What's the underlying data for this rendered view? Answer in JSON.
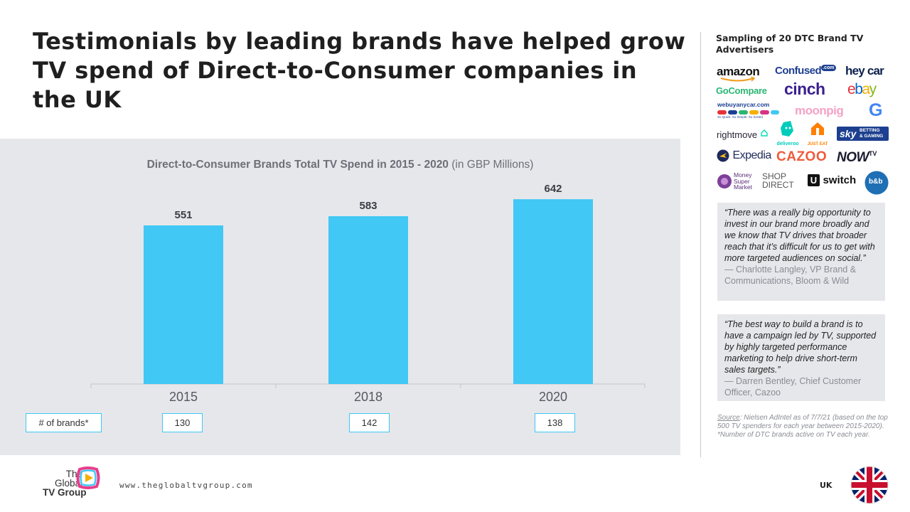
{
  "title": "Testimonials by leading brands have helped grow TV spend of Direct-to-Consumer companies in the UK",
  "chart_data": {
    "type": "bar",
    "title": "Direct-to-Consumer Brands Total TV Spend in 2015 - 2020",
    "title_unit": "(in GBP Millions)",
    "categories": [
      "2015",
      "2018",
      "2020"
    ],
    "values": [
      551,
      583,
      642
    ],
    "ylim": [
      0,
      700
    ],
    "grid": false,
    "bar_color": "#41c8f5",
    "row_label": "# of brands*",
    "brand_counts": [
      "130",
      "142",
      "138"
    ]
  },
  "sidebar": {
    "sampling_title": "Sampling of 20 DTC Brand TV Advertisers",
    "logos": {
      "amazon": "amazon",
      "confused": "Confused",
      "confused_suffix": ".com",
      "heycar": "hey car",
      "gocompare": "GoCompare",
      "cinch": "cinch",
      "ebay_e": "e",
      "ebay_b": "b",
      "ebay_a": "a",
      "ebay_y": "y",
      "webuyanycar": "webuyanycar.com",
      "webuyanycar_tagline": "So Quick. So Simple. So Sorted",
      "moonpig": "moonpig",
      "google": "G",
      "rightmove": "rightmove",
      "deliveroo": "deliveroo",
      "justeat": "JUST EAT",
      "sky": "sky",
      "sky_sub1": "BETTING",
      "sky_sub2": "& GAMING",
      "expedia": "Expedia",
      "cazoo": "CAZOO",
      "nowtv": "NOW",
      "nowtv_tv": "TV",
      "moneysupermarket1": "Money",
      "moneysupermarket2": "Super",
      "moneysupermarket3": "Market",
      "shopdirect1": "SHOP",
      "shopdirect2": "DIRECT",
      "uswitch_u": "U",
      "uswitch": "switch",
      "bbb": "b&b"
    },
    "quotes": [
      {
        "text": "“There was a really big opportunity to invest in our brand more broadly and we know that TV drives that broader reach that it’s difficult for us to get with more targeted audiences on social.”",
        "author": "— Charlotte Langley, VP Brand & Communications, Bloom & Wild"
      },
      {
        "text": "“The best way to build a brand is to have a campaign led by TV, supported by highly targeted performance marketing to help drive short-term sales targets.”",
        "author": "— Darren Bentley, Chief Customer Officer, Cazoo"
      }
    ],
    "source_label": "Source",
    "source_text": ": Nielsen AdIntel as of 7/7/21 (based on the top 500 TV spenders for each year between 2015-2020). *Number of DTC brands active on TV each year."
  },
  "footer": {
    "logo_line1": "The",
    "logo_line2": "Global",
    "logo_line3": "TV Group",
    "website": "www.theglobaltvgroup.com",
    "country": "UK"
  }
}
